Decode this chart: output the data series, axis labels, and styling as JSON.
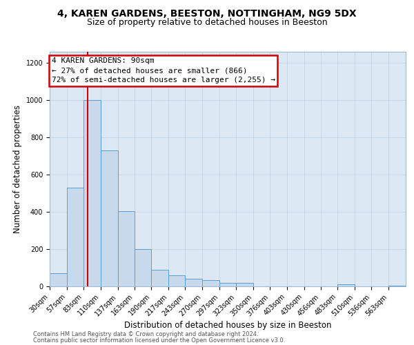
{
  "title": "4, KAREN GARDENS, BEESTON, NOTTINGHAM, NG9 5DX",
  "subtitle": "Size of property relative to detached houses in Beeston",
  "xlabel": "Distribution of detached houses by size in Beeston",
  "ylabel": "Number of detached properties",
  "bin_edges": [
    30,
    57,
    83,
    110,
    137,
    163,
    190,
    217,
    243,
    270,
    297,
    323,
    350,
    376,
    403,
    430,
    456,
    483,
    510,
    536,
    563,
    590
  ],
  "bar_heights": [
    70,
    530,
    1000,
    730,
    405,
    200,
    90,
    60,
    40,
    35,
    20,
    20,
    0,
    0,
    0,
    0,
    0,
    10,
    0,
    0,
    5
  ],
  "bar_color": "#c9d9ec",
  "bar_edge_color": "#5a9fd4",
  "property_size": 90,
  "property_label": "4 KAREN GARDENS: 90sqm",
  "annotation_line1": "← 27% of detached houses are smaller (866)",
  "annotation_line2": "72% of semi-detached houses are larger (2,255) →",
  "vline_color": "#cc0000",
  "annotation_box_color": "#cc0000",
  "ylim": [
    0,
    1260
  ],
  "yticks": [
    0,
    200,
    400,
    600,
    800,
    1000,
    1200
  ],
  "background_color": "#dce9f5",
  "footer_line1": "Contains HM Land Registry data © Crown copyright and database right 2024.",
  "footer_line2": "Contains public sector information licensed under the Open Government Licence v3.0.",
  "title_fontsize": 10,
  "subtitle_fontsize": 9,
  "axis_label_fontsize": 8.5,
  "tick_fontsize": 7,
  "annotation_fontsize": 8,
  "footer_fontsize": 6
}
